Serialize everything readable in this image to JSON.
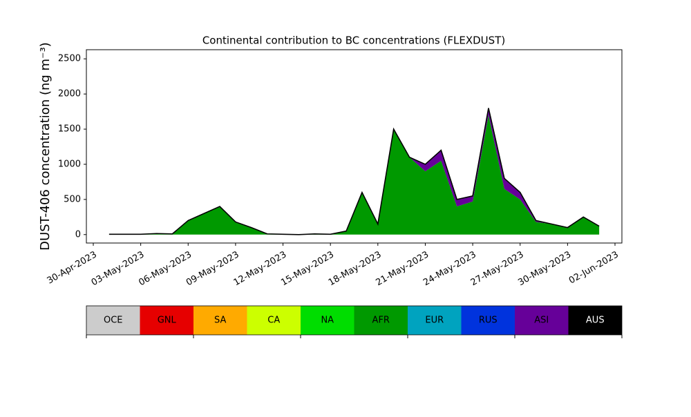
{
  "chart_data": {
    "type": "stacked-area",
    "title": "Continental contribution to BC concentrations (FLEXDUST)",
    "ylabel": "DUST-406 concentration (ng m⁻³)",
    "x": [
      "2023-05-01",
      "2023-05-02",
      "2023-05-03",
      "2023-05-04",
      "2023-05-05",
      "2023-05-06",
      "2023-05-07",
      "2023-05-08",
      "2023-05-09",
      "2023-05-10",
      "2023-05-11",
      "2023-05-12",
      "2023-05-13",
      "2023-05-14",
      "2023-05-15",
      "2023-05-16",
      "2023-05-17",
      "2023-05-18",
      "2023-05-19",
      "2023-05-20",
      "2023-05-21",
      "2023-05-22",
      "2023-05-23",
      "2023-05-24",
      "2023-05-25",
      "2023-05-26",
      "2023-05-27",
      "2023-05-28",
      "2023-05-29",
      "2023-05-30",
      "2023-05-31",
      "2023-06-01"
    ],
    "series": [
      {
        "name": "AFR",
        "color": "#009900",
        "values": [
          5,
          5,
          5,
          15,
          10,
          200,
          300,
          400,
          180,
          100,
          10,
          5,
          0,
          10,
          5,
          50,
          600,
          150,
          1500,
          1100,
          900,
          1050,
          400,
          470,
          1700,
          650,
          500,
          180,
          150,
          100,
          250,
          120
        ]
      },
      {
        "name": "ASI",
        "color": "#660099",
        "values": [
          0,
          0,
          0,
          0,
          0,
          0,
          0,
          0,
          0,
          0,
          0,
          0,
          0,
          0,
          0,
          0,
          0,
          0,
          0,
          0,
          100,
          150,
          100,
          80,
          100,
          150,
          100,
          20,
          0,
          0,
          0,
          0
        ]
      }
    ],
    "xlim": [
      "2023-04-30",
      "2023-06-02"
    ],
    "xticks": [
      {
        "value": "2023-04-30",
        "label": "30-Apr-2023"
      },
      {
        "value": "2023-05-03",
        "label": "03-May-2023"
      },
      {
        "value": "2023-05-06",
        "label": "06-May-2023"
      },
      {
        "value": "2023-05-09",
        "label": "09-May-2023"
      },
      {
        "value": "2023-05-12",
        "label": "12-May-2023"
      },
      {
        "value": "2023-05-15",
        "label": "15-May-2023"
      },
      {
        "value": "2023-05-18",
        "label": "18-May-2023"
      },
      {
        "value": "2023-05-21",
        "label": "21-May-2023"
      },
      {
        "value": "2023-05-24",
        "label": "24-May-2023"
      },
      {
        "value": "2023-05-27",
        "label": "27-May-2023"
      },
      {
        "value": "2023-05-30",
        "label": "30-May-2023"
      },
      {
        "value": "2023-06-02",
        "label": "02-Jun-2023"
      }
    ],
    "ylim": [
      -120,
      2630
    ],
    "yticks": [
      0,
      500,
      1000,
      1500,
      2000,
      2500
    ],
    "outline_color": "#000000",
    "colorbar": {
      "labels": [
        "OCE",
        "GNL",
        "SA",
        "CA",
        "NA",
        "AFR",
        "EUR",
        "RUS",
        "ASI",
        "AUS"
      ],
      "colors": [
        "#cccccc",
        "#e60000",
        "#ffaa00",
        "#ccff00",
        "#00dd00",
        "#009900",
        "#00a3bf",
        "#0033dd",
        "#660099",
        "#000000"
      ],
      "text_colors": [
        "#000000",
        "#000000",
        "#000000",
        "#000000",
        "#000000",
        "#000000",
        "#000000",
        "#000000",
        "#000000",
        "#ffffff"
      ]
    }
  }
}
